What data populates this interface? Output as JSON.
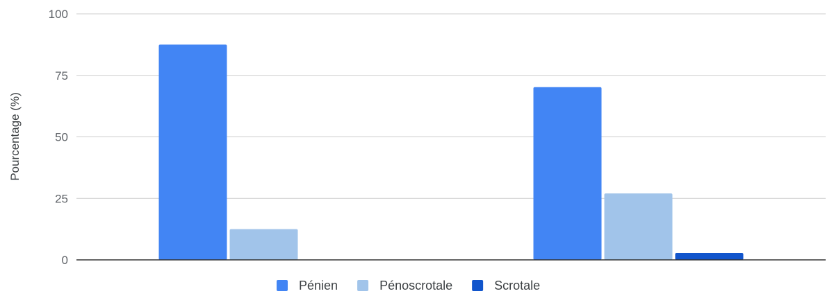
{
  "chart_data": {
    "type": "bar",
    "title": "",
    "xlabel": "",
    "ylabel": "Pourcentage (%)",
    "ylim": [
      0,
      100
    ],
    "yticks": [
      "0",
      "25",
      "50",
      "75",
      "100"
    ],
    "grid": true,
    "legend_position": "bottom",
    "categories": [
      "",
      ""
    ],
    "series": [
      {
        "name": "Pénien",
        "color": "#4285f4",
        "values": [
          87.5,
          70.2
        ]
      },
      {
        "name": "Pénoscrotale",
        "color": "#a1c4ea",
        "values": [
          12.5,
          27.0
        ]
      },
      {
        "name": "Scrotale",
        "color": "#1155cc",
        "values": [
          0.0,
          2.8
        ]
      }
    ]
  }
}
